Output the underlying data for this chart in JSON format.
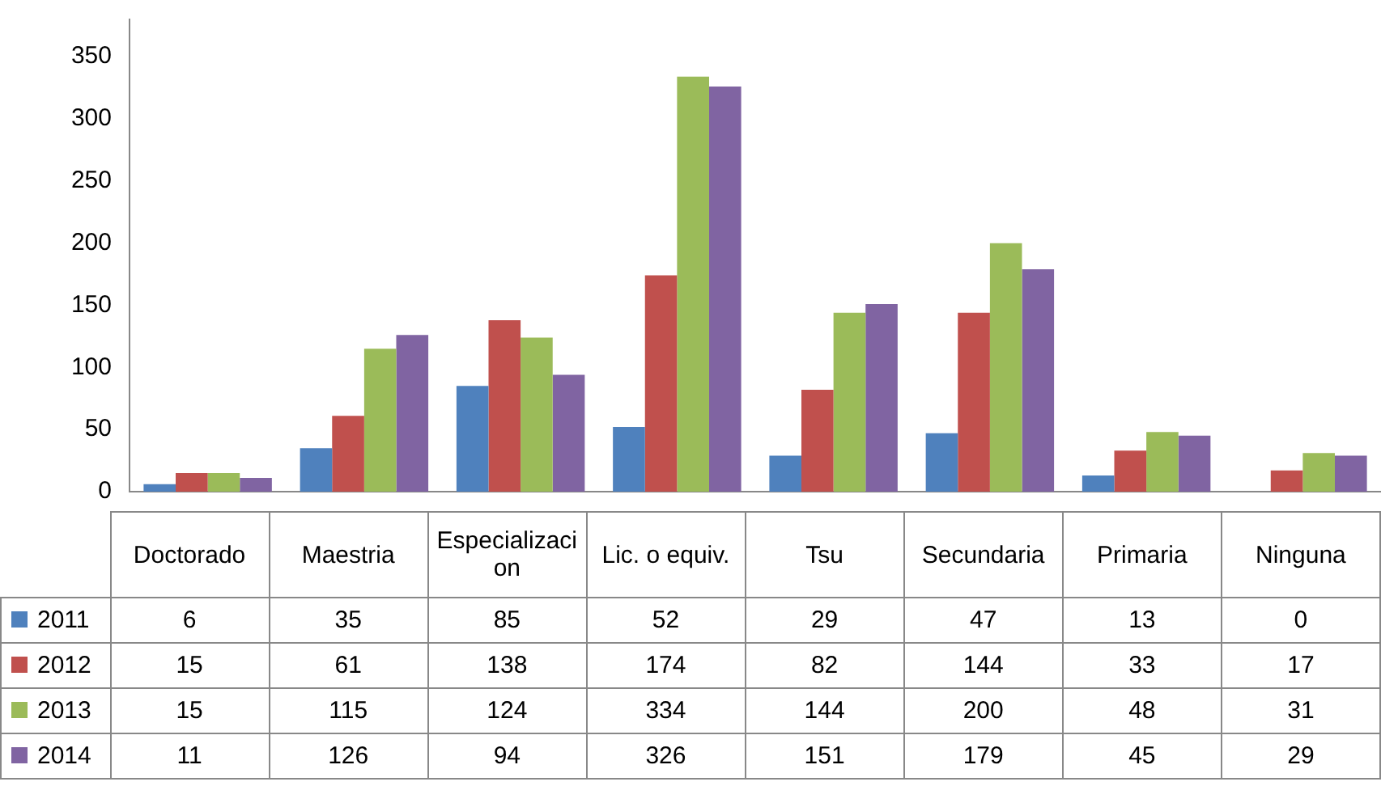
{
  "chart_data": {
    "type": "bar",
    "categories": [
      "Doctorado",
      "Maestria",
      "Especializacion",
      "Lic. o equiv.",
      "Tsu",
      "Secundaria",
      "Primaria",
      "Ninguna"
    ],
    "series": [
      {
        "name": "2011",
        "color": "#4f81bd",
        "values": [
          6,
          35,
          85,
          52,
          29,
          47,
          13,
          0
        ]
      },
      {
        "name": "2012",
        "color": "#c0504d",
        "values": [
          15,
          61,
          138,
          174,
          82,
          144,
          33,
          17
        ]
      },
      {
        "name": "2013",
        "color": "#9bbb59",
        "values": [
          15,
          115,
          124,
          334,
          144,
          200,
          48,
          31
        ]
      },
      {
        "name": "2014",
        "color": "#8064a2",
        "values": [
          11,
          126,
          94,
          326,
          151,
          179,
          45,
          29
        ]
      }
    ],
    "ylim": [
      0,
      380
    ],
    "yticks": [
      0,
      50,
      100,
      150,
      200,
      250,
      300,
      350
    ],
    "grid": false,
    "legend": "bottom",
    "data_labels": true
  }
}
